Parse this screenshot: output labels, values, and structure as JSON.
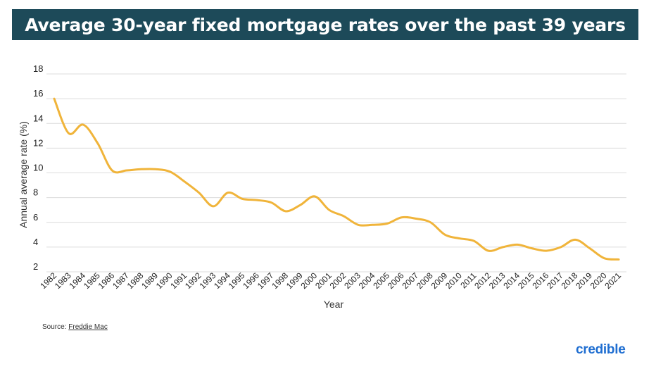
{
  "title": "Average 30-year fixed mortgage rates over the past 39 years",
  "source_prefix": "Source: ",
  "source_name": "Freddie Mac",
  "brand": "credible",
  "colors": {
    "title_bg": "#1d4a59",
    "line": "#f0b43a",
    "grid": "#dcdcdc",
    "brand": "#1f6ed1"
  },
  "chart_data": {
    "type": "line",
    "xlabel": "Year",
    "ylabel": "Annual average rate (%)",
    "ylim": [
      2,
      18
    ],
    "yticks": [
      2,
      4,
      6,
      8,
      10,
      12,
      14,
      16,
      18
    ],
    "grid": true,
    "categories": [
      "1982",
      "1983",
      "1984",
      "1985",
      "1986",
      "1987",
      "1988",
      "1989",
      "1990",
      "1991",
      "1992",
      "1993",
      "1994",
      "1995",
      "1996",
      "1997",
      "1998",
      "1999",
      "2000",
      "2001",
      "2002",
      "2003",
      "2004",
      "2005",
      "2006",
      "2007",
      "2008",
      "2009",
      "2010",
      "2011",
      "2012",
      "2013",
      "2014",
      "2015",
      "2016",
      "2017",
      "2018",
      "2019",
      "2020",
      "2021"
    ],
    "values": [
      16.0,
      13.2,
      13.9,
      12.4,
      10.2,
      10.2,
      10.3,
      10.3,
      10.1,
      9.3,
      8.4,
      7.3,
      8.4,
      7.9,
      7.8,
      7.6,
      6.9,
      7.4,
      8.1,
      7.0,
      6.5,
      5.8,
      5.8,
      5.9,
      6.4,
      6.3,
      6.0,
      5.0,
      4.7,
      4.5,
      3.7,
      4.0,
      4.2,
      3.9,
      3.7,
      4.0,
      4.6,
      3.9,
      3.1,
      3.0
    ]
  }
}
